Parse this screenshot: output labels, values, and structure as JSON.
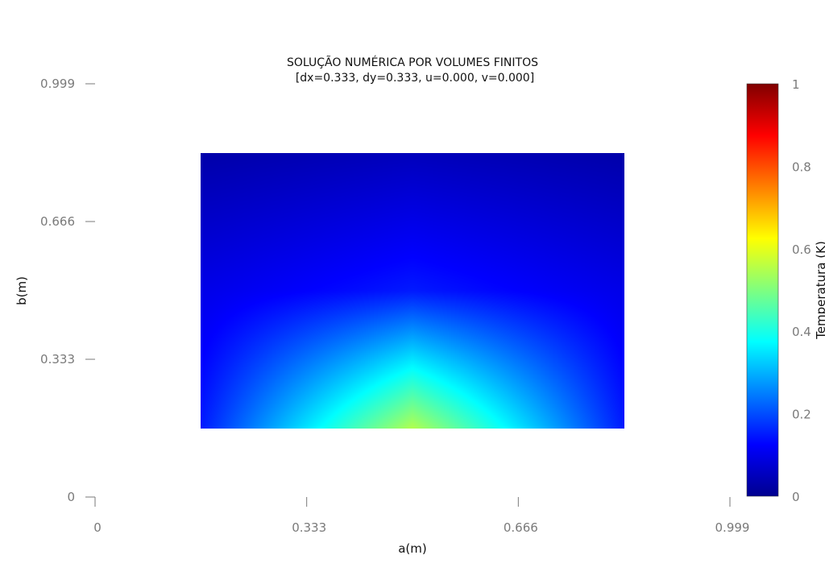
{
  "chart_data": {
    "type": "heatmap",
    "title": "SOLUÇÃO NUMÉRICA POR VOLUMES FINITOS",
    "subtitle": "[dx=0.333, dy=0.333, u=0.000, v=0.000]",
    "xlabel": "a(m)",
    "ylabel": "b(m)",
    "xlim": [
      0,
      0.999
    ],
    "ylim": [
      0,
      0.999
    ],
    "x_ticks": [
      "0",
      "0.333",
      "0.666",
      "0.999"
    ],
    "y_ticks": [
      "0",
      "0.333",
      "0.666",
      "0.999"
    ],
    "x": [
      0.1665,
      0.4995,
      0.8325
    ],
    "y": [
      0.1665,
      0.4995,
      0.8325
    ],
    "z": [
      [
        0.15,
        0.55,
        0.15
      ],
      [
        0.1,
        0.15,
        0.1
      ],
      [
        0.03,
        0.05,
        0.03
      ]
    ],
    "colorbar": {
      "title": "Temperatura (K)",
      "range": [
        0,
        1
      ],
      "ticks": [
        "0",
        "0.2",
        "0.4",
        "0.6",
        "0.8",
        "1"
      ],
      "colorscale": [
        "#00008f",
        "#0000ff",
        "#00ffff",
        "#ffff00",
        "#ff0000",
        "#800000"
      ]
    }
  }
}
